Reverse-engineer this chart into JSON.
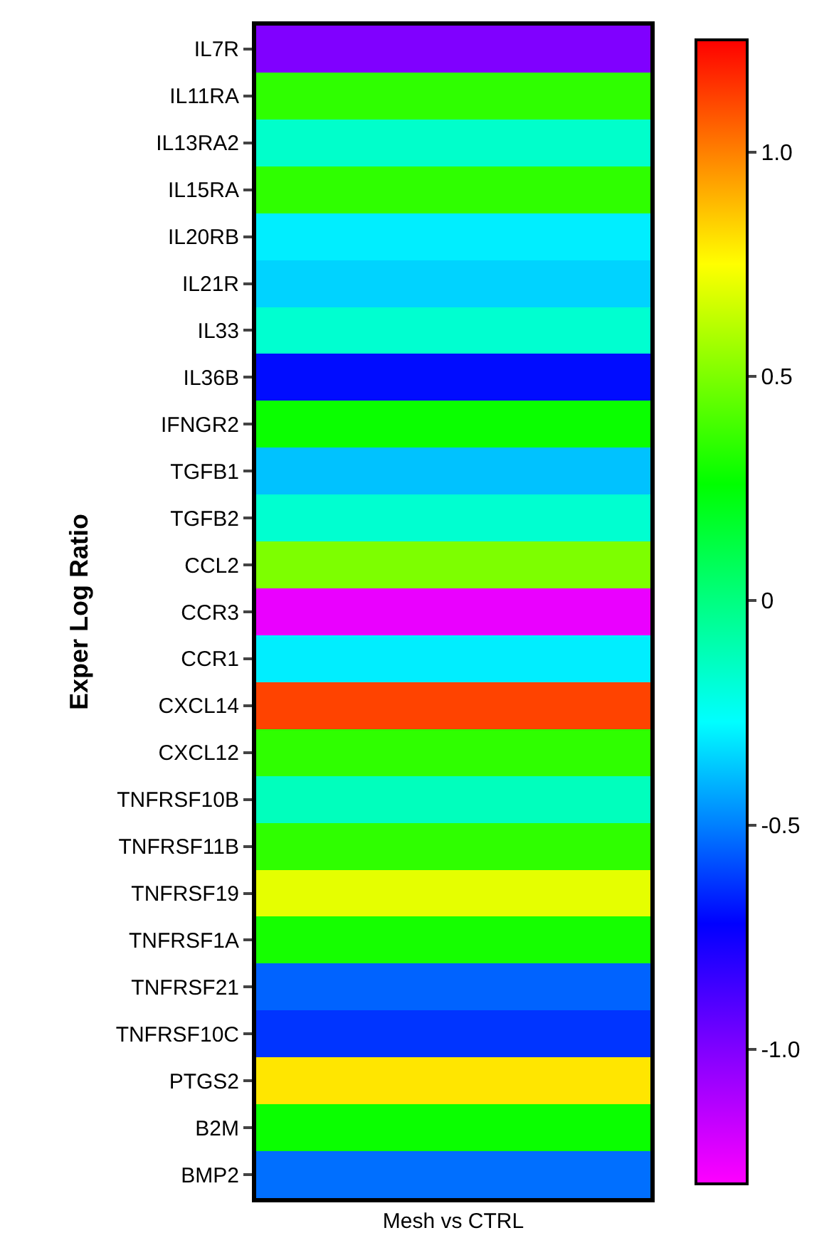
{
  "chart_data": {
    "type": "heatmap",
    "ylabel": "Exper Log Ratio",
    "categories": [
      "Mesh vs CTRL"
    ],
    "y_categories": [
      "IL7R",
      "IL11RA",
      "IL13RA2",
      "IL15RA",
      "IL20RB",
      "IL21R",
      "IL33",
      "IL36B",
      "IFNGR2",
      "TGFB1",
      "TGFB2",
      "CCL2",
      "CCR3",
      "CCR1",
      "CXCL14",
      "CXCL12",
      "TNFRSF10B",
      "TNFRSF11B",
      "TNFRSF19",
      "TNFRSF1A",
      "TNFRSF21",
      "TNFRSF10C",
      "PTGS2",
      "B2M",
      "BMP2"
    ],
    "cells": [
      [
        -1.0
      ],
      [
        0.35
      ],
      [
        -0.16
      ],
      [
        0.35
      ],
      [
        -0.3
      ],
      [
        -0.35
      ],
      [
        -0.17
      ],
      [
        -0.7
      ],
      [
        0.28
      ],
      [
        -0.38
      ],
      [
        -0.17
      ],
      [
        0.5
      ],
      [
        -1.25
      ],
      [
        -0.3
      ],
      [
        1.12
      ],
      [
        0.35
      ],
      [
        -0.13
      ],
      [
        0.35
      ],
      [
        0.7
      ],
      [
        0.3
      ],
      [
        -0.55
      ],
      [
        -0.63
      ],
      [
        0.8
      ],
      [
        0.28
      ],
      [
        -0.53
      ]
    ],
    "clim": [
      -1.3,
      1.25
    ],
    "cticks": [
      {
        "value": -1.0,
        "label": "-1.0"
      },
      {
        "value": -0.5,
        "label": "-0.5"
      },
      0,
      {
        "value": 0.5,
        "label": "0.5"
      },
      {
        "value": 1.0,
        "label": "1.0"
      }
    ]
  }
}
